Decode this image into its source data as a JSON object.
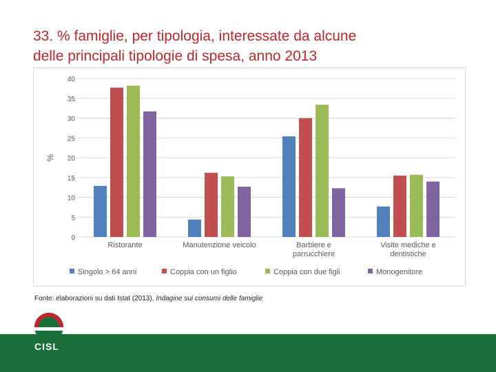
{
  "slide": {
    "title_line1": "33. % famiglie, per tipologia, interessate da alcune",
    "title_line2": "delle principali tipologie di spesa, anno 2013",
    "source_prefix": "Fonte: elaborazioni su dati Istat (2013), ",
    "source_italic": "Indagine sui consumi delle famiglie",
    "logo_text": "CISL"
  },
  "colors": {
    "title": "#c0272d",
    "footer": "#1a6e3a"
  },
  "chart_data": {
    "type": "bar",
    "title": "",
    "xlabel": "",
    "ylabel": "%",
    "ylim": [
      0,
      40
    ],
    "yticks": [
      "0",
      "5",
      "10",
      "15",
      "20",
      "25",
      "30",
      "35",
      "40"
    ],
    "categories": [
      [
        "Ristorante"
      ],
      [
        "Manutenzione veicolo"
      ],
      [
        "Barbiere e",
        "parrucchiere"
      ],
      [
        "Visite mediche e",
        "dentistiche"
      ]
    ],
    "series": [
      {
        "name": "Singolo > 64 anni",
        "color": "#4f81bd",
        "values": [
          12.9,
          4.4,
          25.4,
          7.7
        ]
      },
      {
        "name": "Coppia con un figlio",
        "color": "#c0504d",
        "values": [
          37.7,
          16.2,
          30.0,
          15.5
        ]
      },
      {
        "name": "Coppia con due figli",
        "color": "#9bbb59",
        "values": [
          38.2,
          15.3,
          33.4,
          15.7
        ]
      },
      {
        "name": "Monogenitore",
        "color": "#8064a2",
        "values": [
          31.7,
          12.7,
          12.3,
          14.0
        ]
      }
    ],
    "legend": "bottom",
    "grid": true
  }
}
